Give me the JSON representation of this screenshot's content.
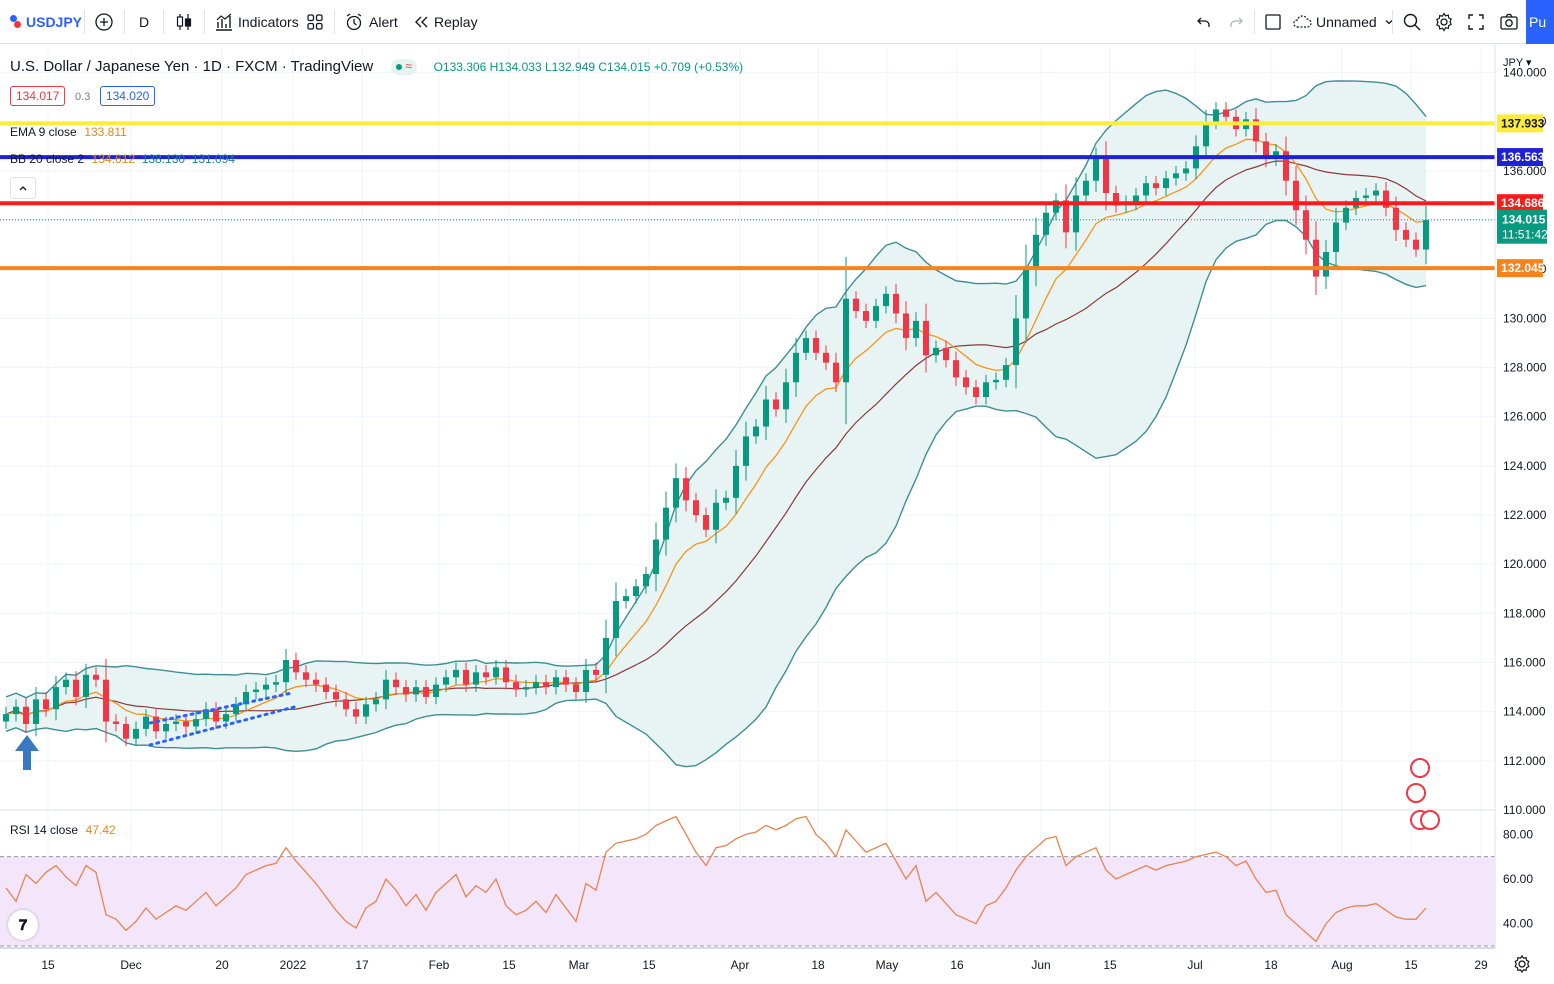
{
  "toolbar": {
    "symbol": "USDJPY",
    "interval": "D",
    "indicators_label": "Indicators",
    "alert_label": "Alert",
    "replay_label": "Replay",
    "layout_name": "Unnamed",
    "publish_label": "Pu"
  },
  "legend": {
    "title": "U.S. Dollar / Japanese Yen · 1D · FXCM · TradingView",
    "ohlc": "O133.306 H134.033 L132.949 C134.015 +0.709 (+0.53%)",
    "bid": "134.017",
    "spread": "0.3",
    "ask": "134.020",
    "ema_name": "EMA 9 close",
    "ema_value": "133.811",
    "bb_name": "BB 20 close 2",
    "bb_basis": "134.612",
    "bb_upper": "138.130",
    "bb_lower": "131.094",
    "rsi_name": "RSI 14 close",
    "rsi_value": "47.42"
  },
  "colors": {
    "up": "#089981",
    "down": "#f23645",
    "ema": "#f7931a",
    "bb_basis": "#8b3a3a",
    "bb_band": "#3e8e96",
    "bb_fill": "#e8f4f3",
    "rsi_line": "#e8834e",
    "rsi_band": "#f3e6fb"
  },
  "chart_data": {
    "type": "candlestick",
    "symbol": "USDJPY",
    "currency": "JPY",
    "ylim": [
      110,
      141
    ],
    "y_ticks": [
      "140.000",
      "138.000",
      "136.000",
      "134.000",
      "132.000",
      "130.000",
      "128.000",
      "126.000",
      "124.000",
      "122.000",
      "120.000",
      "118.000",
      "116.000",
      "114.000",
      "112.000",
      "110.000"
    ],
    "x_ticks": [
      "15",
      "Dec",
      "20",
      "2022",
      "17",
      "Feb",
      "15",
      "Mar",
      "15",
      "Apr",
      "18",
      "May",
      "16",
      "Jun",
      "15",
      "Jul",
      "18",
      "Aug",
      "15",
      "29"
    ],
    "horizontal_lines": [
      {
        "value": 137.933,
        "label": "137.933",
        "color": "#ffeb3b"
      },
      {
        "value": 136.563,
        "label": "136.563",
        "color": "#1e22d6"
      },
      {
        "value": 134.686,
        "label": "134.686",
        "color": "#ff1a1a"
      },
      {
        "value": 132.045,
        "label": "132.045",
        "color": "#f5841f"
      }
    ],
    "last_price": {
      "value": 134.015,
      "label": "134.015",
      "countdown": "11:51:42"
    },
    "closes": [
      113.9,
      114.2,
      113.5,
      114.5,
      114.1,
      115.0,
      115.3,
      114.6,
      115.5,
      115.3,
      113.6,
      113.5,
      112.9,
      113.3,
      113.8,
      113.2,
      113.5,
      113.6,
      113.4,
      113.7,
      114.1,
      113.6,
      113.9,
      114.3,
      114.8,
      114.9,
      115.1,
      115.2,
      116.1,
      115.6,
      115.3,
      115.1,
      114.8,
      114.5,
      114.1,
      113.8,
      114.3,
      114.5,
      115.3,
      115.0,
      114.7,
      115.0,
      114.6,
      115.1,
      115.4,
      115.7,
      115.1,
      115.6,
      115.4,
      115.8,
      115.2,
      114.9,
      115.0,
      115.2,
      115.0,
      115.4,
      115.1,
      114.8,
      115.7,
      115.5,
      117.0,
      118.5,
      118.7,
      119.1,
      119.6,
      121.0,
      122.3,
      123.5,
      122.6,
      122.0,
      121.4,
      122.5,
      122.7,
      124.0,
      125.2,
      125.6,
      126.7,
      126.3,
      127.4,
      128.6,
      129.2,
      128.6,
      128.2,
      127.4,
      130.8,
      130.3,
      129.9,
      130.5,
      131.0,
      130.2,
      129.2,
      129.9,
      128.5,
      128.8,
      128.3,
      127.6,
      127.2,
      126.8,
      127.4,
      127.5,
      128.1,
      130.0,
      132.0,
      133.4,
      134.3,
      134.8,
      133.5,
      135.0,
      135.6,
      136.5,
      135.1,
      134.6,
      134.7,
      135.0,
      135.5,
      135.3,
      135.7,
      135.9,
      136.1,
      137.0,
      138.0,
      138.5,
      138.2,
      137.7,
      138.1,
      137.2,
      136.5,
      136.8,
      135.6,
      134.4,
      133.2,
      131.7,
      132.7,
      133.9,
      134.5,
      134.9,
      135.0,
      135.2,
      134.5,
      133.6,
      133.2,
      132.8,
      134.0
    ],
    "rsi": {
      "ylim": [
        30,
        90
      ],
      "ticks": [
        "80.00",
        "60.00",
        "40.00"
      ],
      "overbought": 70,
      "oversold": 30,
      "values": [
        56,
        50,
        62,
        58,
        63,
        66,
        61,
        57,
        66,
        63,
        44,
        42,
        37,
        41,
        47,
        42,
        45,
        48,
        46,
        50,
        54,
        48,
        52,
        56,
        62,
        64,
        66,
        67,
        74,
        68,
        63,
        58,
        52,
        46,
        41,
        38,
        47,
        50,
        60,
        55,
        48,
        53,
        46,
        54,
        58,
        62,
        52,
        57,
        54,
        60,
        48,
        44,
        46,
        50,
        45,
        53,
        47,
        41,
        58,
        55,
        72,
        76,
        77,
        78,
        80,
        84,
        86,
        88,
        80,
        72,
        66,
        74,
        75,
        78,
        80,
        81,
        84,
        82,
        84,
        87,
        88,
        80,
        76,
        70,
        82,
        77,
        72,
        74,
        76,
        68,
        60,
        66,
        50,
        54,
        49,
        44,
        42,
        40,
        48,
        50,
        56,
        64,
        70,
        74,
        78,
        79,
        66,
        70,
        72,
        74,
        64,
        60,
        62,
        64,
        66,
        64,
        66,
        67,
        68,
        70,
        71,
        72,
        70,
        66,
        68,
        60,
        54,
        55,
        44,
        40,
        36,
        32,
        40,
        45,
        47,
        48,
        48,
        49,
        46,
        43,
        42,
        42,
        47
      ]
    }
  }
}
